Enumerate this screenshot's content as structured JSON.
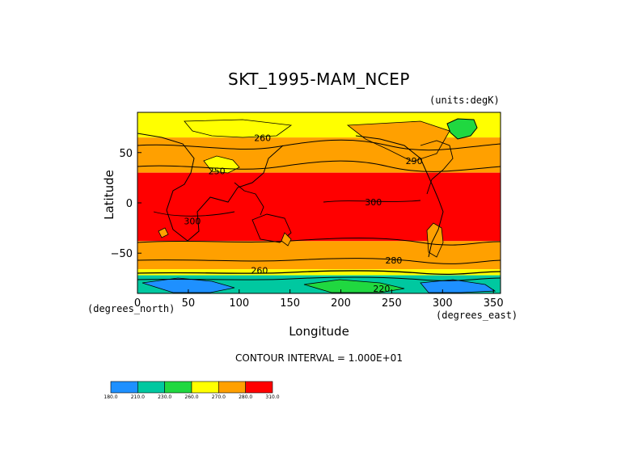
{
  "chart_data": {
    "type": "heatmap",
    "title": "SKT_1995-MAM_NCEP",
    "units_label": "(units:degK)",
    "xlabel": "Longitude",
    "ylabel": "Latitude",
    "x_units_label": "(degrees_east)",
    "y_units_label": "(degrees_north)",
    "xlim": [
      0,
      357
    ],
    "ylim": [
      -90,
      90
    ],
    "x_ticks": [
      0,
      50,
      100,
      150,
      200,
      250,
      300,
      350
    ],
    "y_ticks": [
      50,
      0,
      -50
    ],
    "y_tick_labels": [
      "50",
      "0",
      "−50"
    ],
    "contour_interval_text": "CONTOUR INTERVAL = 1.000E+01",
    "contour_labels": [
      {
        "text": "260",
        "lon": 123,
        "lat": 64
      },
      {
        "text": "250",
        "lon": 78,
        "lat": 31
      },
      {
        "text": "290",
        "lon": 272,
        "lat": 41
      },
      {
        "text": "300",
        "lon": 232,
        "lat": 0
      },
      {
        "text": "300",
        "lon": 54,
        "lat": -19
      },
      {
        "text": "280",
        "lon": 252,
        "lat": -58
      },
      {
        "text": "260",
        "lon": 120,
        "lat": -68
      },
      {
        "text": "220",
        "lon": 240,
        "lat": -86
      }
    ],
    "colorbar": {
      "levels": [
        "180.0",
        "210.0",
        "230.0",
        "260.0",
        "270.0",
        "280.0",
        "310.0"
      ],
      "colors": [
        "#1e90ff",
        "#00c8a0",
        "#20d840",
        "#ffff00",
        "#ffa000",
        "#ff0000"
      ]
    },
    "zones": [
      {
        "lat_min": 65,
        "lat_max": 90,
        "value": 265,
        "color": "#ffff00"
      },
      {
        "lat_min": 30,
        "lat_max": 65,
        "value": 285,
        "color": "#ffa000"
      },
      {
        "lat_min": -38,
        "lat_max": 30,
        "value": 300,
        "color": "#ff0000"
      },
      {
        "lat_min": -66,
        "lat_max": -38,
        "value": 285,
        "color": "#ffa000"
      },
      {
        "lat_min": -72,
        "lat_max": -66,
        "value": 265,
        "color": "#ffff00"
      },
      {
        "lat_min": -90,
        "lat_max": -72,
        "value": 230,
        "color": "#00c8a0"
      }
    ]
  }
}
